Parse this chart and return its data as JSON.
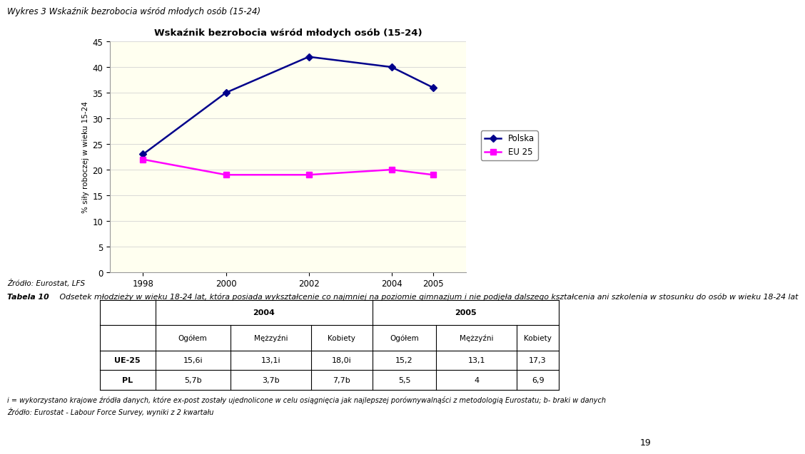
{
  "chart_title": "Wskaźnik bezrobocia wśród młodych osób (15-24)",
  "outer_title": "Wykres 3 Wskaźnik bezrobocia wśród młodych osób (15-24)",
  "years": [
    1998,
    2000,
    2002,
    2004,
    2005
  ],
  "polska_values": [
    23,
    35,
    42,
    40,
    36
  ],
  "eu25_values": [
    22,
    19,
    19,
    20,
    19
  ],
  "polska_color": "#00008B",
  "eu25_color": "#FF00FF",
  "ylabel": "% siły roboczej w wieku 15-24",
  "ylim": [
    0,
    45
  ],
  "yticks": [
    0,
    5,
    10,
    15,
    20,
    25,
    30,
    35,
    40,
    45
  ],
  "plot_bg_color": "#FFFFF0",
  "fig_bg_color": "#FFFFFF",
  "polska_label": "Polska",
  "eu25_label": "EU 25",
  "source_text": "Źródło: Eurostat, LFS",
  "table_title_bold": "Tabela 10",
  "table_title_normal": " Odsetek młodzieży w wieku 18-24 lat, która posiada wykształcenie co najmniej na poziomie gimnazjum i nie podjęła dalszego kształcenia ani szkolenia w stosunku do osób w wieku 18-24 lat",
  "table_row_labels": [
    "UE-25",
    "PL"
  ],
  "table_data_2004": [
    [
      "15,6i",
      "13,1i",
      "18,0i"
    ],
    [
      "5,7b",
      "3,7b",
      "7,7b"
    ]
  ],
  "table_data_2005": [
    [
      "15,2",
      "13,1",
      "17,3"
    ],
    [
      "5,5",
      "4",
      "6,9"
    ]
  ],
  "footnote1": "i = wykorzystano krajowe źródła danych, które ex-post zostały ujednolicone w celu osiągnięcia jak najlepszej porównywalnąści z metodologią Eurostatu; b- braki w danych",
  "footnote2": "Źródło: Eurostat - Labour Force Survey, wyniki z 2 kwartału",
  "page_number": "19",
  "col_sub_labels": [
    "Ogółem",
    "Mężzyźni",
    "Kobiety"
  ],
  "legend_box_color": "#FFFFFF",
  "grid_color": "#D3D3D3"
}
